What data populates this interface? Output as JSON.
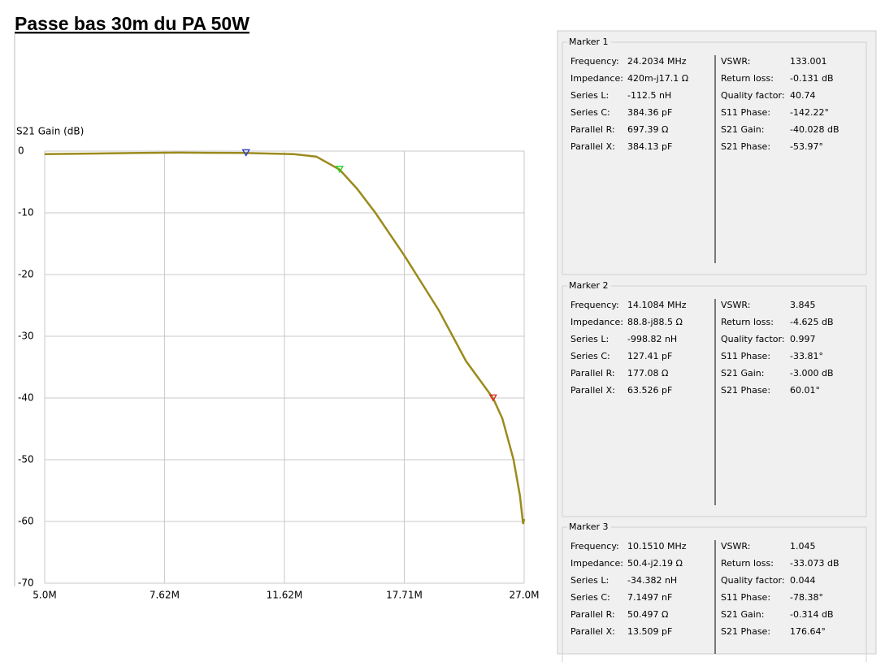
{
  "header": {
    "title": "Passe bas 30m du PA 50W"
  },
  "chart_data": {
    "type": "line",
    "ylabel": "S21 Gain (dB)",
    "xscale": "log",
    "grid": true,
    "color": "#9b8b1c",
    "x": [
      5,
      6,
      7,
      8,
      10,
      12,
      13,
      14.1084,
      15,
      16,
      17.71,
      20,
      22,
      24.2034,
      25,
      26,
      26.6,
      26.9,
      27
    ],
    "values": [
      -0.5,
      -0.4,
      -0.3,
      -0.25,
      -0.3,
      -0.5,
      -0.9,
      -3.0,
      -6.1,
      -10,
      -16.9,
      -25.8,
      -34,
      -40.028,
      -43.3,
      -49.9,
      -55.8,
      -60.4,
      -59.6
    ],
    "xlim": [
      5,
      27
    ],
    "ylim": [
      -70,
      0
    ],
    "xticks": [
      {
        "value": 5,
        "label": "5.0M"
      },
      {
        "value": 7.62,
        "label": "7.62M"
      },
      {
        "value": 11.62,
        "label": "11.62M"
      },
      {
        "value": 17.71,
        "label": "17.71M"
      },
      {
        "value": 27,
        "label": "27.0M"
      }
    ],
    "yticks": [
      0,
      -10,
      -20,
      -30,
      -40,
      -50,
      -60,
      -70
    ],
    "markers": [
      {
        "x": 24.2034,
        "y": -40.028,
        "color": "#e02020"
      },
      {
        "x": 14.1084,
        "y": -3.0,
        "color": "#20d020"
      },
      {
        "x": 10.151,
        "y": -0.314,
        "color": "#2030c0"
      }
    ]
  },
  "panels": [
    {
      "title": "Marker 1",
      "color": "#e02020",
      "left": [
        [
          "Frequency:",
          "24.2034 MHz"
        ],
        [
          "Impedance:",
          "420m-j17.1 Ω"
        ],
        [
          "Series L:",
          "-112.5 nH"
        ],
        [
          "Series C:",
          "384.36 pF"
        ],
        [
          "Parallel R:",
          "697.39 Ω"
        ],
        [
          "Parallel X:",
          "384.13 pF"
        ]
      ],
      "right": [
        [
          "VSWR:",
          "133.001"
        ],
        [
          "Return loss:",
          "-0.131 dB"
        ],
        [
          "Quality factor:",
          "40.74"
        ],
        [
          "S11 Phase:",
          "-142.22°"
        ],
        [
          "S21 Gain:",
          "-40.028 dB"
        ],
        [
          "S21 Phase:",
          "-53.97°"
        ]
      ]
    },
    {
      "title": "Marker 2",
      "color": "#20c020",
      "left": [
        [
          "Frequency:",
          "14.1084 MHz"
        ],
        [
          "Impedance:",
          "88.8-j88.5 Ω"
        ],
        [
          "Series L:",
          "-998.82 nH"
        ],
        [
          "Series C:",
          "127.41 pF"
        ],
        [
          "Parallel R:",
          "177.08 Ω"
        ],
        [
          "Parallel X:",
          "63.526 pF"
        ]
      ],
      "right": [
        [
          "VSWR:",
          "3.845"
        ],
        [
          "Return loss:",
          "-4.625 dB"
        ],
        [
          "Quality factor:",
          "0.997"
        ],
        [
          "S11 Phase:",
          "-33.81°"
        ],
        [
          "S21 Gain:",
          "-3.000 dB"
        ],
        [
          "S21 Phase:",
          "60.01°"
        ]
      ]
    },
    {
      "title": "Marker 3",
      "color": "#2030c0",
      "left": [
        [
          "Frequency:",
          "10.1510 MHz"
        ],
        [
          "Impedance:",
          "50.4-j2.19 Ω"
        ],
        [
          "Series L:",
          "-34.382 nH"
        ],
        [
          "Series C:",
          "7.1497 nF"
        ],
        [
          "Parallel R:",
          "50.497 Ω"
        ],
        [
          "Parallel X:",
          "13.509 pF"
        ]
      ],
      "right": [
        [
          "VSWR:",
          "1.045"
        ],
        [
          "Return loss:",
          "-33.073 dB"
        ],
        [
          "Quality factor:",
          "0.044"
        ],
        [
          "S11 Phase:",
          "-78.38°"
        ],
        [
          "S21 Gain:",
          "-0.314 dB"
        ],
        [
          "S21 Phase:",
          "176.64°"
        ]
      ]
    }
  ]
}
